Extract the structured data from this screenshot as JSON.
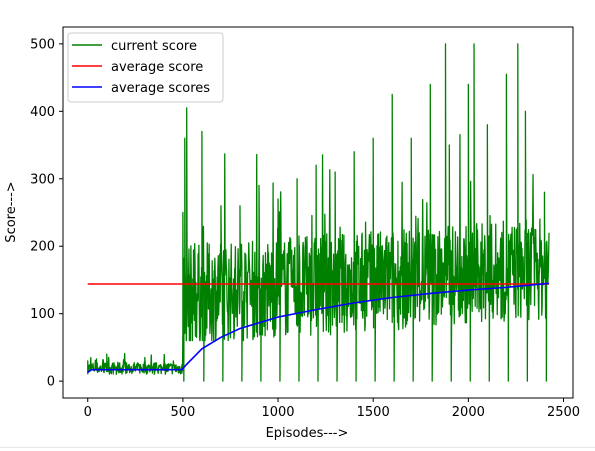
{
  "chart_data": {
    "type": "line",
    "title": "",
    "xlabel": "Episodes--->",
    "ylabel": "Score--->",
    "xlim": [
      -130,
      2550
    ],
    "ylim": [
      -25,
      525
    ],
    "xticks": [
      0,
      500,
      1000,
      1500,
      2000,
      2500
    ],
    "yticks": [
      0,
      100,
      200,
      300,
      400,
      500
    ],
    "grid": false,
    "legend_position": "top-left",
    "series": [
      {
        "name": "current score",
        "color": "#008000",
        "style": "noisy-episode-scores",
        "episodes": 2424,
        "points": [
          [
            0,
            30
          ],
          [
            50,
            15
          ],
          [
            100,
            40
          ],
          [
            150,
            10
          ],
          [
            200,
            25
          ],
          [
            250,
            15
          ],
          [
            300,
            35
          ],
          [
            350,
            10
          ],
          [
            400,
            20
          ],
          [
            450,
            30
          ],
          [
            495,
            12
          ],
          [
            500,
            250
          ],
          [
            505,
            0
          ],
          [
            510,
            360
          ],
          [
            520,
            405
          ],
          [
            540,
            120
          ],
          [
            600,
            370
          ],
          [
            610,
            0
          ],
          [
            700,
            260
          ],
          [
            710,
            0
          ],
          [
            800,
            260
          ],
          [
            810,
            0
          ],
          [
            900,
            290
          ],
          [
            910,
            0
          ],
          [
            1000,
            270
          ],
          [
            1010,
            0
          ],
          [
            1100,
            300
          ],
          [
            1110,
            0
          ],
          [
            1200,
            320
          ],
          [
            1210,
            0
          ],
          [
            1300,
            310
          ],
          [
            1310,
            0
          ],
          [
            1400,
            340
          ],
          [
            1410,
            0
          ],
          [
            1500,
            360
          ],
          [
            1510,
            0
          ],
          [
            1600,
            425
          ],
          [
            1610,
            0
          ],
          [
            1700,
            360
          ],
          [
            1710,
            0
          ],
          [
            1800,
            440
          ],
          [
            1810,
            0
          ],
          [
            1880,
            500
          ],
          [
            1900,
            350
          ],
          [
            1910,
            0
          ],
          [
            2000,
            440
          ],
          [
            2010,
            0
          ],
          [
            2030,
            500
          ],
          [
            2100,
            380
          ],
          [
            2110,
            0
          ],
          [
            2200,
            455
          ],
          [
            2210,
            0
          ],
          [
            2260,
            500
          ],
          [
            2300,
            400
          ],
          [
            2310,
            0
          ],
          [
            2400,
            280
          ],
          [
            2410,
            0
          ],
          [
            2424,
            220
          ]
        ]
      },
      {
        "name": "average score",
        "color": "#ff0000",
        "x": [
          0,
          2424
        ],
        "y": [
          144,
          144
        ]
      },
      {
        "name": "average scores",
        "color": "#0000ff",
        "x": [
          0,
          20,
          100,
          200,
          300,
          400,
          495,
          520,
          600,
          700,
          800,
          1000,
          1200,
          1400,
          1600,
          1800,
          2000,
          2200,
          2424
        ],
        "y": [
          13,
          17,
          17,
          17,
          17,
          17,
          17,
          25,
          48,
          65,
          78,
          95,
          106,
          116,
          124,
          130,
          135,
          139,
          145
        ]
      }
    ]
  }
}
